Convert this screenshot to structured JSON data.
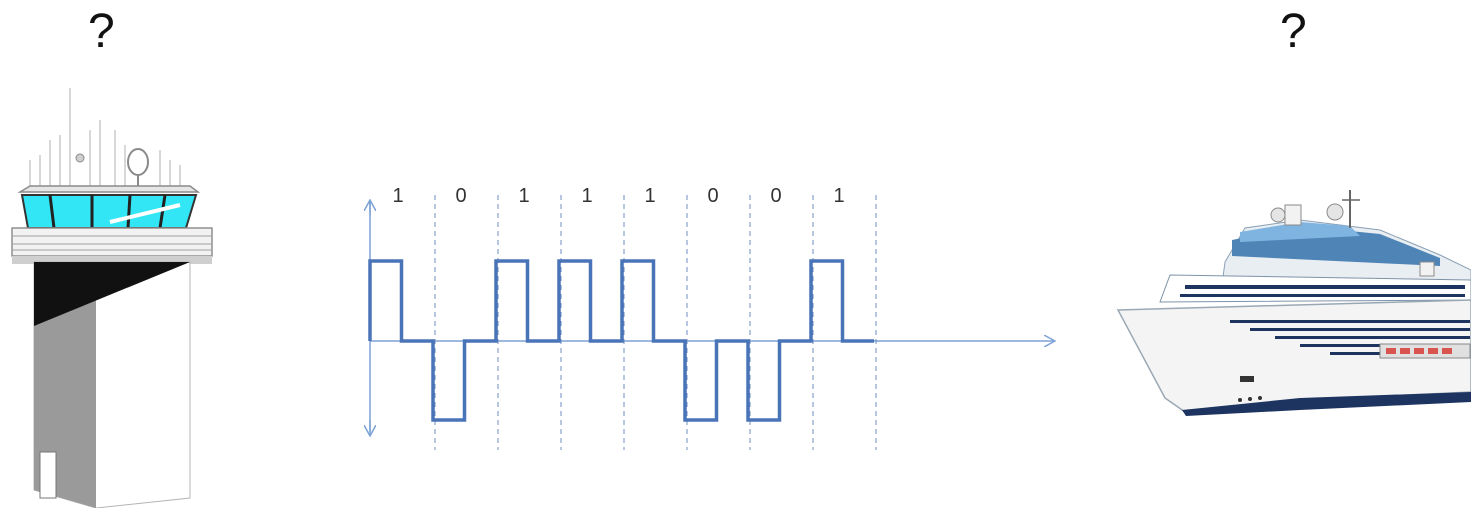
{
  "labels": {
    "left_question": "?",
    "right_question": "?"
  },
  "signal": {
    "bits": [
      "1",
      "0",
      "1",
      "1",
      "1",
      "0",
      "0",
      "1"
    ]
  },
  "icons": {
    "left": "control-tower-icon",
    "right": "cruise-ship-icon"
  },
  "colors": {
    "signal": "#4a74b8",
    "axis": "#7da2d6",
    "divider": "#6f8fc4",
    "tower_glass": "#33e6f5",
    "tower_body": "#ffffff",
    "tower_shadow": "#9a9a9a",
    "ship_hull": "#f4f4f4",
    "ship_stripe": "#1d3360",
    "ship_glass": "#4f84b7"
  }
}
